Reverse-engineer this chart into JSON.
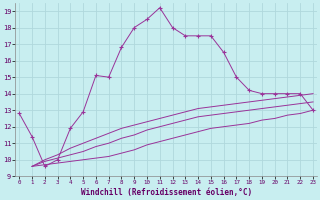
{
  "xlabel": "Windchill (Refroidissement éolien,°C)",
  "bg_color": "#c8eef0",
  "line_color": "#993399",
  "grid_color": "#b0d8dc",
  "x_main": [
    0,
    1,
    2,
    3,
    4,
    5,
    6,
    7,
    8,
    9,
    10,
    11,
    12,
    13,
    14,
    15,
    16,
    17,
    18,
    19,
    20,
    21,
    22,
    23
  ],
  "y_main": [
    12.8,
    11.4,
    9.6,
    10.0,
    11.9,
    12.9,
    15.1,
    15.0,
    16.8,
    18.0,
    18.5,
    19.2,
    18.0,
    17.5,
    17.5,
    17.5,
    16.5,
    15.0,
    14.2,
    14.0,
    14.0,
    14.0,
    14.0,
    13.0
  ],
  "x_ref": [
    1,
    2,
    3,
    4,
    5,
    6,
    7,
    8,
    9,
    10,
    11,
    12,
    13,
    14,
    15,
    16,
    17,
    18,
    19,
    20,
    21,
    22,
    23
  ],
  "y_line2": [
    9.6,
    9.7,
    9.8,
    9.9,
    10.0,
    10.1,
    10.2,
    10.4,
    10.6,
    10.9,
    11.1,
    11.3,
    11.5,
    11.7,
    11.9,
    12.0,
    12.1,
    12.2,
    12.4,
    12.5,
    12.7,
    12.8,
    13.0
  ],
  "y_line3": [
    9.6,
    9.9,
    10.1,
    10.3,
    10.5,
    10.8,
    11.0,
    11.3,
    11.5,
    11.8,
    12.0,
    12.2,
    12.4,
    12.6,
    12.7,
    12.8,
    12.9,
    13.0,
    13.1,
    13.2,
    13.3,
    13.4,
    13.5
  ],
  "y_line4": [
    9.6,
    10.0,
    10.3,
    10.7,
    11.0,
    11.3,
    11.6,
    11.9,
    12.1,
    12.3,
    12.5,
    12.7,
    12.9,
    13.1,
    13.2,
    13.3,
    13.4,
    13.5,
    13.6,
    13.7,
    13.8,
    13.9,
    14.0
  ],
  "ylim": [
    9,
    19.5
  ],
  "xlim": [
    -0.3,
    23.3
  ],
  "yticks": [
    9,
    10,
    11,
    12,
    13,
    14,
    15,
    16,
    17,
    18,
    19
  ],
  "xticks": [
    0,
    1,
    2,
    3,
    4,
    5,
    6,
    7,
    8,
    9,
    10,
    11,
    12,
    13,
    14,
    15,
    16,
    17,
    18,
    19,
    20,
    21,
    22,
    23
  ]
}
